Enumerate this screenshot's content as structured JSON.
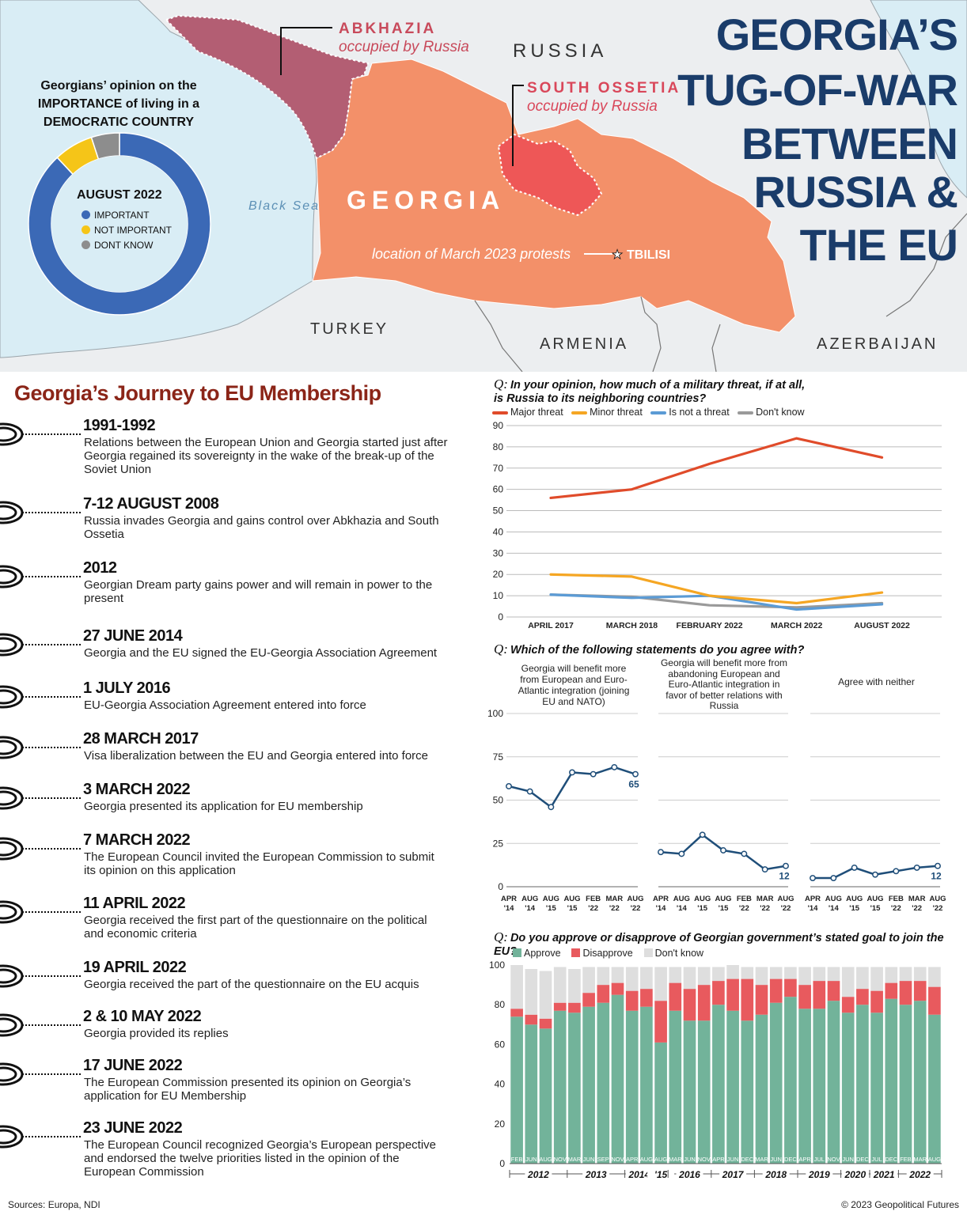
{
  "colors": {
    "sea": "#d9edf5",
    "land": "#eceef0",
    "georgia": "#f39069",
    "abkhazia": "#b35e73",
    "ossetia": "#ee5757",
    "navy": "#1a3c6a",
    "maroon": "#8b2518",
    "red_label": "#d9475a",
    "donut_blue": "#3b69b6",
    "donut_yellow": "#f5c518",
    "donut_grey": "#8d8d8d"
  },
  "map": {
    "title_lines": [
      "GEORGIA’S",
      "TUG-OF-WAR",
      "BETWEEN",
      "RUSSIA &",
      "THE EU"
    ],
    "abkhazia_name": "ABKHAZIA",
    "abkhazia_note": "occupied by Russia",
    "ossetia_name": "SOUTH OSSETIA",
    "ossetia_note": "occupied by Russia",
    "russia": "RUSSIA",
    "georgia": "GEORGIA",
    "black_sea": "Black Sea",
    "turkey": "TURKEY",
    "armenia": "ARMENIA",
    "azerbaijan": "AZERBAIJAN",
    "protest_note": "location of March 2023 protests",
    "tbilisi": "TBILISI"
  },
  "donut": {
    "title": "Georgians’ opinion on the IMPORTANCE of living in a DEMOCRATIC COUNTRY",
    "period": "AUGUST 2022",
    "legend": [
      "IMPORTANT",
      "NOT IMPORTANT",
      "DONT KNOW"
    ],
    "values": [
      88,
      7,
      5
    ]
  },
  "timeline": {
    "title": "Georgia’s Journey to EU Membership",
    "events": [
      {
        "date": "1991-1992",
        "desc": "Relations between the European Union and Georgia started just after Georgia regained its sovereignty in the wake of the break-up of the Soviet Union"
      },
      {
        "date": "7-12 AUGUST 2008",
        "desc": "Russia invades Georgia and gains control over Abkhazia and South Ossetia"
      },
      {
        "date": "2012",
        "desc": "Georgian Dream party gains power and will remain in power to the present"
      },
      {
        "date": "27 JUNE 2014",
        "desc": "Georgia and the EU signed the EU-Georgia Association Agreement"
      },
      {
        "date": "1 JULY 2016",
        "desc": "EU-Georgia Association Agreement entered into force"
      },
      {
        "date": "28 MARCH 2017",
        "desc": "Visa liberalization between the EU and Georgia entered into force"
      },
      {
        "date": "3 MARCH 2022",
        "desc": "Georgia presented its application for EU membership"
      },
      {
        "date": "7 MARCH 2022",
        "desc": "The European Council invited the European Commission to submit its opinion on this application"
      },
      {
        "date": "11 APRIL 2022",
        "desc": "Georgia received the first part of the questionnaire on the political and economic criteria"
      },
      {
        "date": "19 APRIL 2022",
        "desc": "Georgia received the part of the questionnaire on the EU acquis"
      },
      {
        "date": "2 & 10 MAY 2022",
        "desc": "Georgia provided its replies"
      },
      {
        "date": "17 JUNE 2022",
        "desc": "The European Commission presented its opinion on Georgia’s application for EU Membership"
      },
      {
        "date": "23 JUNE 2022",
        "desc": "The European Council recognized Georgia’s European perspective and endorsed the twelve priorities listed in the opinion of the European Commission"
      }
    ]
  },
  "sources": "Sources: Europa, NDI",
  "copyright": "© 2023 Geopolitical Futures",
  "chart_data": [
    {
      "type": "pie",
      "title": "Georgians’ opinion on the IMPORTANCE of living in a DEMOCRATIC COUNTRY",
      "subtitle": "AUGUST 2022",
      "categories": [
        "IMPORTANT",
        "NOT IMPORTANT",
        "DONT KNOW"
      ],
      "values": [
        88,
        7,
        5
      ]
    },
    {
      "type": "line",
      "q": "Q:",
      "title": "In your opinion, how much of a military threat, if at all, is Russia to its neighboring countries?",
      "categories": [
        "APRIL 2017",
        "MARCH 2018",
        "FEBRUARY 2022",
        "MARCH 2022",
        "AUGUST 2022"
      ],
      "x": [
        0,
        0.94,
        1.84,
        2.85,
        3.84
      ],
      "ylim": [
        0,
        90
      ],
      "yticks": [
        0,
        10,
        20,
        30,
        40,
        50,
        60,
        70,
        80,
        90
      ],
      "series": [
        {
          "name": "Major threat",
          "color": "#e04b2a",
          "values": [
            56,
            60,
            72,
            84,
            75
          ]
        },
        {
          "name": "Minor threat",
          "color": "#f5a623",
          "values": [
            20,
            19,
            10,
            6.5,
            11.5
          ]
        },
        {
          "name": "Is not a threat",
          "color": "#5b9bd5",
          "values": [
            10.5,
            9,
            10,
            3.5,
            6
          ]
        },
        {
          "name": "Don't know",
          "color": "#9a9a9a",
          "values": [
            10.5,
            9.5,
            5.5,
            4.5,
            6.5
          ]
        }
      ]
    },
    {
      "type": "line",
      "q": "Q:",
      "title": "Which of the following statements do you agree with?",
      "ylim": [
        0,
        100
      ],
      "yticks": [
        0,
        25,
        50,
        75,
        100
      ],
      "categories": [
        "APR '14",
        "AUG '14",
        "AUG '15",
        "AUG '15",
        "FEB '22",
        "MAR '22",
        "AUG '22"
      ],
      "panels": [
        {
          "name": "Georgia will benefit more from European and Euro-Atlantic integration (joining EU and NATO)",
          "values": [
            58,
            55,
            46,
            66,
            65,
            69,
            65
          ],
          "last_label": "65"
        },
        {
          "name": "Georgia will benefit more from abandoning European and Euro-Atlantic integration in favor of better relations with Russia",
          "values": [
            20,
            19,
            30,
            21,
            19,
            10,
            12
          ],
          "last_label": "12"
        },
        {
          "name": "Agree with neither",
          "values": [
            5,
            5,
            11,
            7,
            9,
            11,
            12
          ],
          "last_label": "12"
        }
      ]
    },
    {
      "type": "bar",
      "q": "Q:",
      "title": "Do you approve or disapprove of Georgian government’s stated goal to join the EU?",
      "ylim": [
        0,
        100
      ],
      "yticks": [
        0,
        20,
        40,
        60,
        80,
        100
      ],
      "legend": [
        "Approve",
        "Disapprove",
        "Don't know"
      ],
      "series_colors": [
        "#72b39a",
        "#e85a5e",
        "#dedede"
      ],
      "months": [
        "FEB",
        "JUN",
        "AUG",
        "NOV",
        "MAR",
        "JUN",
        "SEP",
        "NOV",
        "APR",
        "AUG",
        "AUG",
        "MAR",
        "JUN",
        "NOV",
        "APR",
        "JUN",
        "DEC",
        "MAR",
        "JUN",
        "DEC",
        "APR",
        "JUL",
        "NOV",
        "JUN",
        "DEC",
        "JUL",
        "DEC",
        "FEB",
        "MAR",
        "AUG"
      ],
      "years": [
        {
          "label": "2012",
          "start": 0,
          "end": 4
        },
        {
          "label": "2013",
          "start": 4,
          "end": 8
        },
        {
          "label": "2014",
          "start": 8,
          "end": 10
        },
        {
          "label": "'15",
          "start": 10,
          "end": 11
        },
        {
          "label": "2016",
          "start": 11,
          "end": 14
        },
        {
          "label": "2017",
          "start": 14,
          "end": 17
        },
        {
          "label": "2018",
          "start": 17,
          "end": 20
        },
        {
          "label": "2019",
          "start": 20,
          "end": 23
        },
        {
          "label": "2020",
          "start": 23,
          "end": 25
        },
        {
          "label": "2021",
          "start": 25,
          "end": 27
        },
        {
          "label": "2022",
          "start": 27,
          "end": 30
        }
      ],
      "approve": [
        74,
        70,
        68,
        77,
        76,
        79,
        81,
        85,
        77,
        79,
        61,
        77,
        72,
        72,
        80,
        77,
        72,
        75,
        81,
        84,
        78,
        78,
        82,
        76,
        80,
        76,
        83,
        80,
        82,
        75
      ],
      "disapprove": [
        4,
        5,
        5,
        4,
        5,
        7,
        9,
        6,
        10,
        9,
        21,
        14,
        16,
        18,
        12,
        16,
        21,
        15,
        12,
        9,
        12,
        14,
        10,
        8,
        8,
        11,
        8,
        12,
        10,
        14
      ],
      "dontknow": [
        22,
        23,
        24,
        18,
        17,
        13,
        9,
        8,
        12,
        11,
        17,
        8,
        11,
        9,
        7,
        7,
        6,
        9,
        6,
        6,
        9,
        7,
        7,
        15,
        11,
        12,
        8,
        7,
        7,
        10
      ]
    }
  ]
}
